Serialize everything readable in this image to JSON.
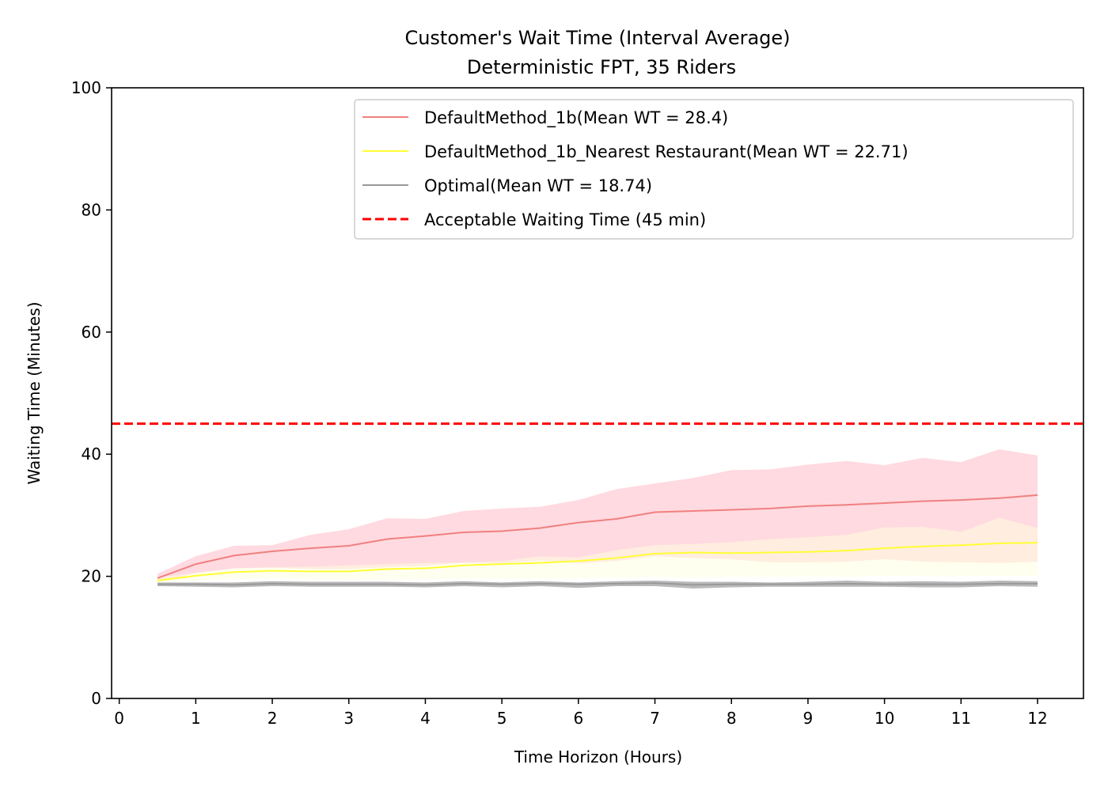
{
  "chart_data": {
    "type": "line",
    "title": "Customer's Wait Time (Interval Average)",
    "subtitle": "Deterministic FPT, 35 Riders",
    "xlabel": "Time Horizon (Hours)",
    "ylabel": "Waiting Time (Minutes)",
    "xlim": [
      -0.1,
      12.6
    ],
    "ylim": [
      0,
      100
    ],
    "xticks": [
      "0",
      "1",
      "2",
      "3",
      "4",
      "5",
      "6",
      "7",
      "8",
      "9",
      "10",
      "11",
      "12"
    ],
    "yticks": [
      "0",
      "20",
      "40",
      "60",
      "80",
      "100"
    ],
    "grid": false,
    "legend_position": "top-right",
    "x": [
      0.5,
      1,
      1.5,
      2,
      2.5,
      3,
      3.5,
      4,
      4.5,
      5,
      5.5,
      6,
      6.5,
      7,
      7.5,
      8,
      8.5,
      9,
      9.5,
      10,
      10.5,
      11,
      11.5,
      12
    ],
    "series": [
      {
        "name": "DefaultMethod_1b(Mean WT = 28.4)",
        "color": "#f08080",
        "band_color": "#ffb6c1",
        "values": [
          19.7,
          22.0,
          23.4,
          24.1,
          24.6,
          25.0,
          26.1,
          26.6,
          27.2,
          27.4,
          27.9,
          28.8,
          29.4,
          30.5,
          30.7,
          30.9,
          31.1,
          31.5,
          31.7,
          32.0,
          32.3,
          32.5,
          32.8,
          33.3
        ],
        "upper": [
          20.4,
          23.3,
          25.0,
          25.1,
          26.8,
          27.7,
          29.5,
          29.4,
          30.7,
          31.1,
          31.4,
          32.5,
          34.3,
          35.2,
          36.1,
          37.4,
          37.5,
          38.3,
          38.9,
          38.2,
          39.4,
          38.7,
          40.8,
          39.8
        ],
        "lower": [
          19.1,
          20.5,
          21.3,
          21.4,
          21.2,
          21.2,
          21.5,
          21.7,
          22.2,
          22.1,
          22.6,
          22.1,
          22.5,
          23.3,
          23.0,
          22.8,
          22.3,
          22.3,
          22.4,
          22.8,
          22.4,
          22.3,
          22.2,
          22.4
        ]
      },
      {
        "name": "DefaultMethod_1b_Nearest Restaurant(Mean WT = 22.71)",
        "color": "#ffff33",
        "band_color": "#ffffe0",
        "values": [
          19.3,
          20.1,
          20.7,
          20.9,
          20.8,
          20.8,
          21.2,
          21.3,
          21.8,
          22.0,
          22.2,
          22.5,
          23.0,
          23.7,
          23.9,
          23.8,
          23.9,
          24.0,
          24.2,
          24.6,
          24.9,
          25.1,
          25.4,
          25.5
        ],
        "upper": [
          19.8,
          20.6,
          21.3,
          21.5,
          21.6,
          21.8,
          22.0,
          22.2,
          22.3,
          22.5,
          23.3,
          23.1,
          24.3,
          25.1,
          25.3,
          25.6,
          26.1,
          26.4,
          26.8,
          28.0,
          28.1,
          27.3,
          29.6,
          27.9
        ],
        "lower": [
          19.0,
          19.4,
          19.5,
          19.6,
          19.5,
          19.4,
          19.5,
          19.5,
          19.6,
          19.6,
          19.6,
          19.7,
          19.8,
          19.9,
          19.8,
          19.9,
          19.9,
          20.0,
          19.9,
          20.1,
          20.0,
          20.0,
          20.1,
          20.1
        ]
      },
      {
        "name": "Optimal(Mean WT = 18.74)",
        "color": "#999999",
        "band_color": "#808080",
        "values": [
          18.7,
          18.7,
          18.6,
          18.8,
          18.7,
          18.7,
          18.7,
          18.6,
          18.8,
          18.7,
          18.8,
          18.7,
          18.8,
          18.9,
          18.6,
          18.7,
          18.7,
          18.7,
          18.8,
          18.7,
          18.7,
          18.7,
          18.8,
          18.8
        ],
        "upper": [
          19.0,
          19.0,
          19.0,
          19.2,
          19.1,
          19.1,
          19.1,
          19.0,
          19.2,
          19.0,
          19.2,
          19.0,
          19.2,
          19.3,
          19.1,
          19.1,
          19.0,
          19.1,
          19.3,
          19.1,
          19.2,
          19.1,
          19.3,
          19.2
        ],
        "lower": [
          18.4,
          18.3,
          18.2,
          18.4,
          18.3,
          18.3,
          18.3,
          18.2,
          18.4,
          18.2,
          18.4,
          18.1,
          18.4,
          18.4,
          18.0,
          18.2,
          18.3,
          18.3,
          18.3,
          18.3,
          18.2,
          18.2,
          18.4,
          18.3
        ]
      }
    ],
    "reference_line": {
      "name": "Acceptable Waiting Time (45 min)",
      "y": 45,
      "color": "#ff0000",
      "style": "dashed"
    }
  }
}
